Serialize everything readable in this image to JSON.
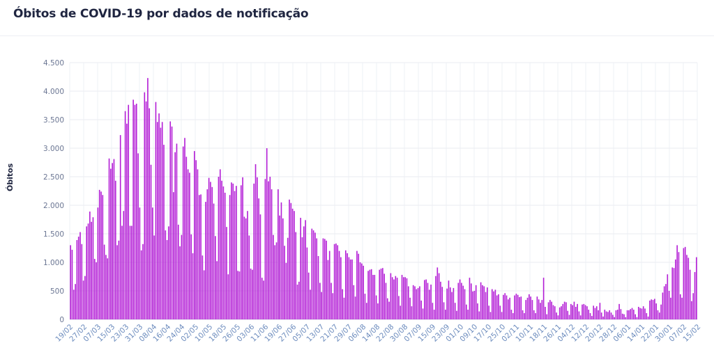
{
  "chart_data": {
    "type": "bar",
    "title": "Óbitos de COVID-19 por dados de notificação",
    "ylabel": "Óbitos",
    "xlabel": "",
    "ylim": [
      0,
      4500
    ],
    "yticks": [
      0,
      500,
      1000,
      1500,
      2000,
      2500,
      3000,
      3500,
      4000,
      4500
    ],
    "ytick_labels": [
      "0",
      "500",
      "1.000",
      "1.500",
      "2.000",
      "2.500",
      "3.000",
      "3.500",
      "4.000",
      "4.500"
    ],
    "grid": true,
    "bar_color": "#b31ed6",
    "xtick_labels": [
      "19/02",
      "27/02",
      "07/03",
      "15/03",
      "23/03",
      "31/03",
      "08/04",
      "16/04",
      "24/04",
      "02/05",
      "10/05",
      "18/05",
      "26/05",
      "03/06",
      "11/06",
      "19/06",
      "27/06",
      "05/07",
      "13/07",
      "21/07",
      "29/07",
      "06/08",
      "14/08",
      "22/08",
      "30/08",
      "07/09",
      "15/09",
      "23/09",
      "01/10",
      "09/10",
      "17/10",
      "25/10",
      "02/11",
      "10/11",
      "18/11",
      "26/11",
      "04/12",
      "12/12",
      "20/12",
      "28/12",
      "06/01",
      "14/01",
      "22/01",
      "30/01",
      "07/02",
      "15/02"
    ],
    "values": [
      1300,
      1220,
      520,
      620,
      1390,
      1450,
      1530,
      1320,
      680,
      760,
      1630,
      1680,
      1890,
      1710,
      1790,
      1060,
      1000,
      1960,
      2270,
      2240,
      2180,
      1310,
      1130,
      1070,
      2820,
      2640,
      2740,
      2810,
      2430,
      1300,
      1380,
      3230,
      1640,
      1900,
      3650,
      3430,
      3760,
      1640,
      1640,
      3850,
      3760,
      3780,
      2910,
      1960,
      1210,
      1320,
      3980,
      3820,
      4230,
      3700,
      2710,
      1960,
      1470,
      3810,
      3460,
      3610,
      3360,
      3460,
      3060,
      1560,
      1390,
      1630,
      3470,
      3380,
      2230,
      2930,
      3080,
      1660,
      1280,
      1480,
      3030,
      3180,
      2850,
      2630,
      2570,
      1490,
      1160,
      2950,
      2790,
      2630,
      2180,
      2190,
      1120,
      860,
      2060,
      2280,
      2480,
      2410,
      2320,
      2030,
      1460,
      1020,
      2500,
      2630,
      2430,
      2330,
      2220,
      1620,
      790,
      2180,
      2400,
      2380,
      2250,
      2340,
      850,
      840,
      2350,
      2490,
      1800,
      1770,
      1900,
      1470,
      890,
      870,
      2380,
      2720,
      2490,
      2120,
      1840,
      730,
      680,
      2460,
      3000,
      2420,
      2500,
      2280,
      1480,
      1300,
      1350,
      2280,
      1820,
      2050,
      1770,
      1290,
      990,
      1430,
      2100,
      2040,
      1940,
      1900,
      1530,
      610,
      660,
      1780,
      1440,
      1630,
      1740,
      1260,
      820,
      520,
      1590,
      1560,
      1520,
      1420,
      1110,
      640,
      480,
      1420,
      1410,
      1380,
      1040,
      1200,
      640,
      460,
      1320,
      1330,
      1300,
      1200,
      1090,
      530,
      380,
      1210,
      1160,
      1090,
      1050,
      1050,
      600,
      400,
      1200,
      1150,
      1000,
      980,
      940,
      450,
      290,
      850,
      870,
      880,
      780,
      780,
      420,
      280,
      870,
      890,
      900,
      800,
      640,
      370,
      310,
      810,
      740,
      700,
      760,
      730,
      410,
      240,
      780,
      740,
      740,
      720,
      580,
      380,
      230,
      600,
      580,
      530,
      550,
      580,
      330,
      190,
      690,
      700,
      640,
      520,
      610,
      290,
      170,
      760,
      910,
      810,
      660,
      570,
      300,
      170,
      540,
      680,
      560,
      480,
      550,
      290,
      150,
      640,
      700,
      640,
      590,
      530,
      260,
      170,
      730,
      630,
      490,
      500,
      600,
      280,
      140,
      650,
      600,
      580,
      480,
      560,
      240,
      130,
      530,
      490,
      520,
      420,
      440,
      240,
      130,
      430,
      460,
      420,
      350,
      380,
      170,
      110,
      420,
      450,
      430,
      390,
      400,
      160,
      110,
      340,
      380,
      440,
      400,
      340,
      160,
      110,
      400,
      350,
      290,
      340,
      730,
      220,
      90,
      300,
      340,
      310,
      250,
      230,
      120,
      70,
      210,
      230,
      270,
      310,
      300,
      150,
      80,
      270,
      250,
      310,
      220,
      270,
      140,
      70,
      260,
      270,
      250,
      230,
      170,
      110,
      60,
      240,
      200,
      230,
      160,
      290,
      120,
      50,
      170,
      140,
      130,
      160,
      120,
      80,
      40,
      160,
      170,
      270,
      180,
      100,
      90,
      40,
      160,
      160,
      180,
      200,
      170,
      90,
      40,
      220,
      200,
      190,
      230,
      190,
      110,
      50,
      330,
      350,
      340,
      360,
      280,
      160,
      120,
      260,
      470,
      580,
      620,
      790,
      500,
      380,
      910,
      900,
      1050,
      1300,
      1180,
      440,
      380,
      1250,
      1270,
      1130,
      1080,
      870,
      320,
      460,
      830,
      1090
    ]
  }
}
